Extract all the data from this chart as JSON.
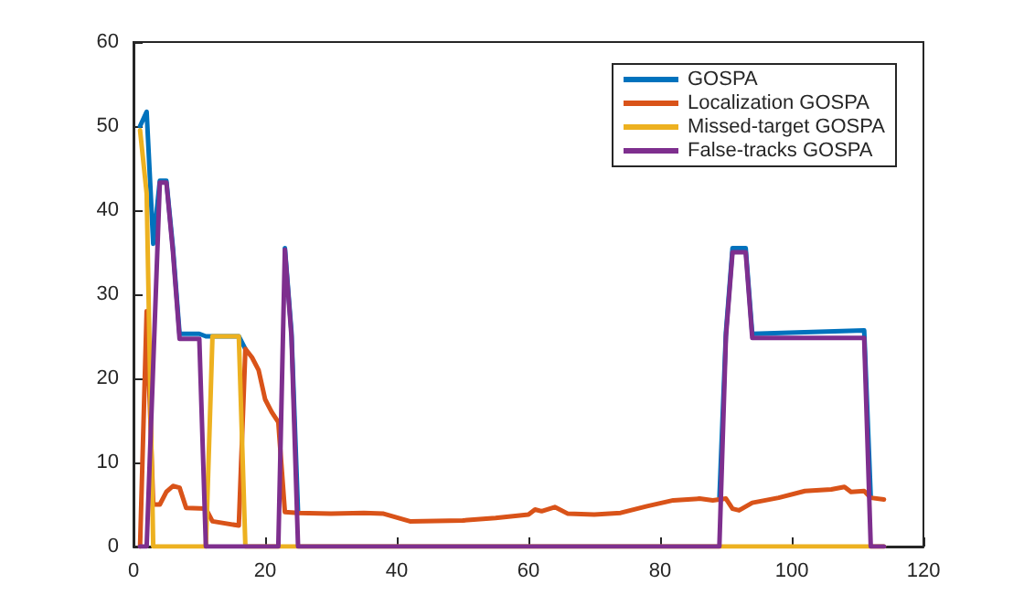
{
  "chart_data": {
    "type": "line",
    "xlim": [
      0,
      120
    ],
    "xticks": [
      0,
      20,
      40,
      60,
      80,
      100,
      120
    ],
    "ylim": [
      0,
      60
    ],
    "yticks": [
      0,
      10,
      20,
      30,
      40,
      50,
      60
    ],
    "grid": false,
    "legend": "top right",
    "marker": "none",
    "line_style": "solid",
    "series": [
      {
        "name": "GOSPA",
        "color": "#0072bd",
        "x": [
          1,
          2,
          3,
          4,
          5,
          6,
          7,
          10,
          11,
          12,
          16,
          17,
          18,
          19,
          20,
          21,
          22,
          23,
          24,
          25,
          30,
          35,
          38,
          42,
          50,
          55,
          60,
          61,
          62,
          64,
          66,
          70,
          74,
          78,
          82,
          86,
          88,
          89,
          90,
          91,
          93,
          94,
          111,
          112
        ],
        "values": [
          50,
          51.7,
          36,
          43.5,
          43.5,
          35.5,
          25.3,
          25.3,
          25,
          25,
          25,
          23.5,
          null,
          null,
          null,
          null,
          null,
          35.5,
          25.5,
          4,
          null,
          null,
          null,
          null,
          null,
          null,
          null,
          null,
          null,
          null,
          null,
          null,
          null,
          null,
          null,
          null,
          null,
          5.6,
          25.5,
          35.5,
          35.5,
          25.3,
          25.7,
          5.8
        ]
      },
      {
        "name": "Localization GOSPA",
        "color": "#d95319",
        "x": [
          1,
          2,
          3,
          4,
          5,
          6,
          7,
          8,
          11,
          12,
          16,
          17,
          18,
          19,
          20,
          21,
          22,
          23,
          25,
          30,
          35,
          38,
          42,
          50,
          55,
          60,
          61,
          62,
          64,
          66,
          70,
          74,
          78,
          82,
          86,
          88,
          90,
          91,
          92,
          94,
          98,
          102,
          106,
          108,
          109,
          111,
          112,
          114
        ],
        "values": [
          0,
          28,
          5,
          5,
          6.5,
          7.2,
          7,
          4.6,
          4.5,
          3,
          2.5,
          23.5,
          22.5,
          21,
          17.5,
          16,
          14.8,
          4.1,
          4,
          3.9,
          4,
          3.9,
          3,
          3.1,
          3.4,
          3.8,
          4.4,
          4.2,
          4.7,
          3.9,
          3.8,
          4,
          4.8,
          5.5,
          5.7,
          5.5,
          5.7,
          4.5,
          4.3,
          5.2,
          5.8,
          6.6,
          6.8,
          7.1,
          6.5,
          6.6,
          5.8,
          5.6
        ]
      },
      {
        "name": "Missed-target GOSPA",
        "color": "#edb120",
        "x": [
          1,
          2,
          3,
          11,
          12,
          16,
          17,
          114
        ],
        "values": [
          49.5,
          42,
          0,
          0,
          25,
          25,
          0,
          0
        ]
      },
      {
        "name": "False-tracks GOSPA",
        "color": "#7e2f8e",
        "x": [
          1,
          2,
          4,
          5,
          6,
          7,
          10,
          11,
          22,
          23,
          24,
          25,
          89,
          90,
          91,
          93,
          94,
          111,
          112,
          114
        ],
        "values": [
          0,
          0,
          43.3,
          43.3,
          35,
          24.7,
          24.7,
          0,
          0,
          35.3,
          25,
          0,
          0,
          25,
          35,
          35,
          24.8,
          24.8,
          0,
          0
        ]
      }
    ]
  }
}
